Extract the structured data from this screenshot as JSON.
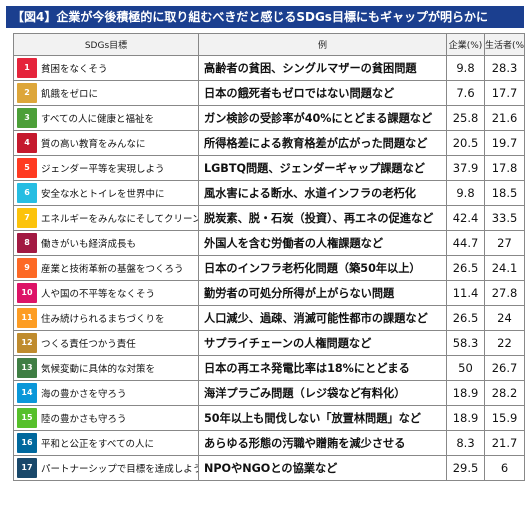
{
  "title": "【図4】企業が今後積極的に取り組むべきだと感じるSDGs目標にもギャップが明らかに",
  "chart_data": {
    "type": "table",
    "columns": [
      "SDGs目標",
      "例",
      "企業(%)",
      "生活者(%)"
    ],
    "rows": [
      {
        "no": 1,
        "goal": "貧困をなくそう",
        "example": "高齢者の貧困、シングルマザーの貧困問題",
        "company": 9.8,
        "consumer": 28.3,
        "color": "#e5243b"
      },
      {
        "no": 2,
        "goal": "飢餓をゼロに",
        "example": "日本の餓死者もゼロではない問題など",
        "company": 7.6,
        "consumer": 17.7,
        "color": "#dda63a"
      },
      {
        "no": 3,
        "goal": "すべての人に健康と福祉を",
        "example": "ガン検診の受診率が40%にとどまる課題など",
        "company": 25.8,
        "consumer": 21.6,
        "color": "#4c9f38"
      },
      {
        "no": 4,
        "goal": "質の高い教育をみんなに",
        "example": "所得格差による教育格差が広がった問題など",
        "company": 20.5,
        "consumer": 19.7,
        "color": "#c5192d"
      },
      {
        "no": 5,
        "goal": "ジェンダー平等を実現しよう",
        "example": "LGBTQ問題、ジェンダーギャップ課題など",
        "company": 37.9,
        "consumer": 17.8,
        "color": "#ff3a21"
      },
      {
        "no": 6,
        "goal": "安全な水とトイレを世界中に",
        "example": "風水害による断水、水道インフラの老朽化",
        "company": 9.8,
        "consumer": 18.5,
        "color": "#26bde2"
      },
      {
        "no": 7,
        "goal": "エネルギーをみんなにそしてクリーンに",
        "example": "脱炭素、脱・石炭（投資）、再エネの促進など",
        "company": 42.4,
        "consumer": 33.5,
        "color": "#fcc30b"
      },
      {
        "no": 8,
        "goal": "働きがいも経済成長も",
        "example": "外国人を含む労働者の人権課題など",
        "company": 44.7,
        "consumer": 27,
        "color": "#a21942"
      },
      {
        "no": 9,
        "goal": "産業と技術革新の基盤をつくろう",
        "example": "日本のインフラ老朽化問題（築50年以上）",
        "company": 26.5,
        "consumer": 24.1,
        "color": "#fd6925"
      },
      {
        "no": 10,
        "goal": "人や国の不平等をなくそう",
        "example": "勤労者の可処分所得が上がらない問題",
        "company": 11.4,
        "consumer": 27.8,
        "color": "#dd1367"
      },
      {
        "no": 11,
        "goal": "住み続けられるまちづくりを",
        "example": "人口減少、過疎、消滅可能性都市の課題など",
        "company": 26.5,
        "consumer": 24,
        "color": "#fd9d24"
      },
      {
        "no": 12,
        "goal": "つくる責任つかう責任",
        "example": "サプライチェーンの人権問題など",
        "company": 58.3,
        "consumer": 22,
        "color": "#bf8b2e"
      },
      {
        "no": 13,
        "goal": "気候変動に具体的な対策を",
        "example": "日本の再エネ発電比率は18%にとどまる",
        "company": 50,
        "consumer": 26.7,
        "color": "#3f7e44"
      },
      {
        "no": 14,
        "goal": "海の豊かさを守ろう",
        "example": "海洋プラごみ問題（レジ袋など有料化）",
        "company": 18.9,
        "consumer": 28.2,
        "color": "#0a97d9"
      },
      {
        "no": 15,
        "goal": "陸の豊かさも守ろう",
        "example": "50年以上も間伐しない「放置林問題」など",
        "company": 18.9,
        "consumer": 15.9,
        "color": "#56c02b"
      },
      {
        "no": 16,
        "goal": "平和と公正をすべての人に",
        "example": "あらゆる形態の汚職や贈賄を減少させる",
        "company": 8.3,
        "consumer": 21.7,
        "color": "#00689d"
      },
      {
        "no": 17,
        "goal": "パートナーシップで目標を達成しよう",
        "example": "NPOやNGOとの協業など",
        "company": 29.5,
        "consumer": 6,
        "color": "#19486a"
      }
    ]
  }
}
